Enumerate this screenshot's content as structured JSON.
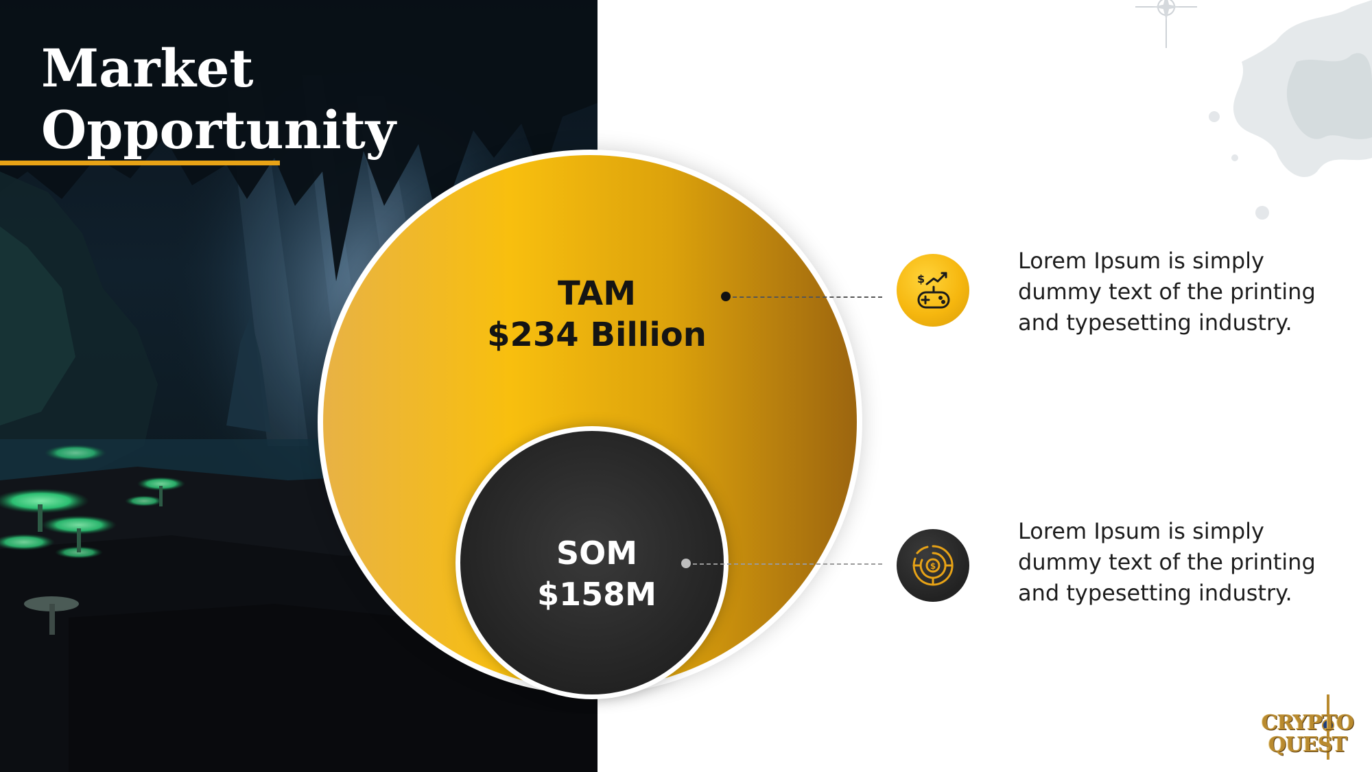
{
  "title": "Market Opportunity",
  "tam": {
    "label": "TAM",
    "value": "$234 Billion"
  },
  "som": {
    "label": "SOM",
    "value": "$158M"
  },
  "items": [
    {
      "icon": "gamepad-chart-icon",
      "text": "Lorem Ipsum is simply dummy text of the printing and typesetting industry."
    },
    {
      "icon": "coin-target-icon",
      "text": "Lorem Ipsum is simply dummy text of the printing and typesetting industry."
    }
  ],
  "logo": {
    "line1": "CRYPTO",
    "line2": "QUEST"
  },
  "colors": {
    "gold": "#f8bf0e",
    "gold_dark": "#9c650f",
    "dark": "#232323",
    "accent_line": "#e8a316"
  }
}
